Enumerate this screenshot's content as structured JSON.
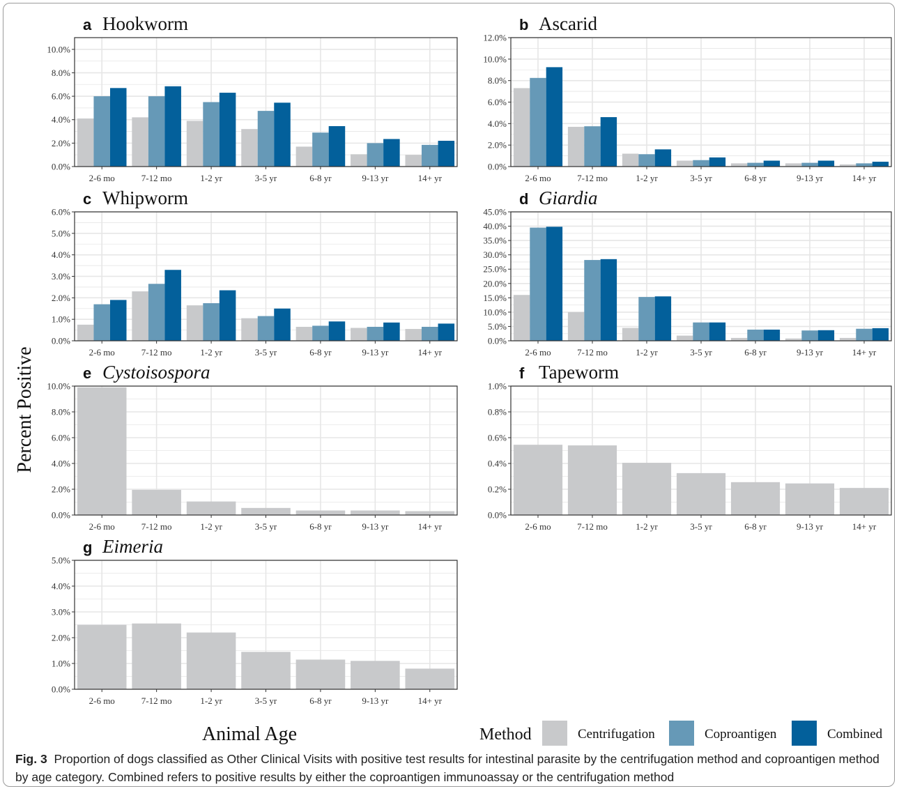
{
  "colors": {
    "centrifugation": "#c8c9cb",
    "coproantigen": "#6699b7",
    "combined": "#03609b",
    "grid": "#e6e6e6",
    "panel_border": "#333333"
  },
  "legend": {
    "title": "Method",
    "entries": [
      "Centrifugation",
      "Coproantigen",
      "Combined"
    ]
  },
  "axes": {
    "x_title": "Animal Age",
    "y_title": "Percent Positive"
  },
  "caption": {
    "label": "Fig. 3",
    "text": "Proportion of dogs classified as Other Clinical Visits with positive test results for intestinal parasite by the centrifugation method and coproantigen method by age category. Combined refers to positive results by either the coproantigen immunoassay or the centrifugation method"
  },
  "chart_data": [
    {
      "type": "bar",
      "panel": "a",
      "title": "Hookworm",
      "italic": false,
      "categories": [
        "2-6 mo",
        "7-12 mo",
        "1-2 yr",
        "3-5 yr",
        "6-8 yr",
        "9-13 yr",
        "14+ yr"
      ],
      "series": [
        {
          "name": "Centrifugation",
          "values": [
            4.1,
            4.2,
            3.9,
            3.2,
            1.7,
            1.05,
            1.0
          ]
        },
        {
          "name": "Coproantigen",
          "values": [
            6.0,
            6.0,
            5.5,
            4.75,
            2.9,
            2.0,
            1.85
          ]
        },
        {
          "name": "Combined",
          "values": [
            6.7,
            6.85,
            6.3,
            5.45,
            3.45,
            2.35,
            2.2
          ]
        }
      ],
      "ylim": [
        0,
        11
      ],
      "yticks": [
        0,
        2,
        4,
        6,
        8,
        10
      ],
      "tick_labels": [
        "0.0%",
        "2.0%",
        "4.0%",
        "6.0%",
        "8.0%",
        "10.0%"
      ]
    },
    {
      "type": "bar",
      "panel": "b",
      "title": "Ascarid",
      "italic": false,
      "categories": [
        "2-6 mo",
        "7-12 mo",
        "1-2 yr",
        "3-5 yr",
        "6-8 yr",
        "9-13 yr",
        "14+ yr"
      ],
      "series": [
        {
          "name": "Centrifugation",
          "values": [
            7.3,
            3.7,
            1.2,
            0.55,
            0.3,
            0.3,
            0.2
          ]
        },
        {
          "name": "Coproantigen",
          "values": [
            8.25,
            3.75,
            1.15,
            0.6,
            0.35,
            0.35,
            0.3
          ]
        },
        {
          "name": "Combined",
          "values": [
            9.25,
            4.6,
            1.6,
            0.85,
            0.55,
            0.55,
            0.45
          ]
        }
      ],
      "ylim": [
        0,
        12
      ],
      "yticks": [
        0,
        2,
        4,
        6,
        8,
        10,
        12
      ],
      "tick_labels": [
        "0.0%",
        "2.0%",
        "4.0%",
        "6.0%",
        "8.0%",
        "10.0%",
        "12.0%"
      ]
    },
    {
      "type": "bar",
      "panel": "c",
      "title": "Whipworm",
      "italic": false,
      "categories": [
        "2-6 mo",
        "7-12 mo",
        "1-2 yr",
        "3-5 yr",
        "6-8 yr",
        "9-13 yr",
        "14+ yr"
      ],
      "series": [
        {
          "name": "Centrifugation",
          "values": [
            0.75,
            2.3,
            1.65,
            1.05,
            0.65,
            0.6,
            0.55
          ]
        },
        {
          "name": "Coproantigen",
          "values": [
            1.7,
            2.65,
            1.75,
            1.15,
            0.7,
            0.65,
            0.65
          ]
        },
        {
          "name": "Combined",
          "values": [
            1.9,
            3.3,
            2.35,
            1.5,
            0.9,
            0.85,
            0.8
          ]
        }
      ],
      "ylim": [
        0,
        6
      ],
      "yticks": [
        0,
        1,
        2,
        3,
        4,
        5,
        6
      ],
      "tick_labels": [
        "0.0%",
        "1.0%",
        "2.0%",
        "3.0%",
        "4.0%",
        "5.0%",
        "6.0%"
      ]
    },
    {
      "type": "bar",
      "panel": "d",
      "title": "Giardia",
      "italic": true,
      "categories": [
        "2-6 mo",
        "7-12 mo",
        "1-2 yr",
        "3-5 yr",
        "6-8 yr",
        "9-13 yr",
        "14+ yr"
      ],
      "series": [
        {
          "name": "Centrifugation",
          "values": [
            16.0,
            10.0,
            4.5,
            1.8,
            1.0,
            0.8,
            1.0
          ]
        },
        {
          "name": "Coproantigen",
          "values": [
            39.5,
            28.2,
            15.3,
            6.4,
            3.9,
            3.6,
            4.2
          ]
        },
        {
          "name": "Combined",
          "values": [
            39.8,
            28.5,
            15.5,
            6.4,
            3.9,
            3.7,
            4.4
          ]
        }
      ],
      "ylim": [
        0,
        45
      ],
      "yticks": [
        0,
        5,
        10,
        15,
        20,
        25,
        30,
        35,
        40,
        45
      ],
      "tick_labels": [
        "0.0%",
        "5.0%",
        "10.0%",
        "15.0%",
        "20.0%",
        "25.0%",
        "30.0%",
        "35.0%",
        "40.0%",
        "45.0%"
      ]
    },
    {
      "type": "bar",
      "panel": "e",
      "title": "Cystoisospora",
      "italic": true,
      "categories": [
        "2-6 mo",
        "7-12 mo",
        "1-2 yr",
        "3-5 yr",
        "6-8 yr",
        "9-13 yr",
        "14+ yr"
      ],
      "series": [
        {
          "name": "Centrifugation",
          "values": [
            9.9,
            1.95,
            1.05,
            0.55,
            0.35,
            0.35,
            0.3
          ]
        }
      ],
      "ylim": [
        0,
        10
      ],
      "yticks": [
        0,
        2,
        4,
        6,
        8,
        10
      ],
      "tick_labels": [
        "0.0%",
        "2.0%",
        "4.0%",
        "6.0%",
        "8.0%",
        "10.0%"
      ]
    },
    {
      "type": "bar",
      "panel": "f",
      "title": "Tapeworm",
      "italic": false,
      "categories": [
        "2-6 mo",
        "7-12 mo",
        "1-2 yr",
        "3-5 yr",
        "6-8 yr",
        "9-13 yr",
        "14+ yr"
      ],
      "series": [
        {
          "name": "Centrifugation",
          "values": [
            0.545,
            0.54,
            0.405,
            0.325,
            0.255,
            0.245,
            0.21
          ]
        }
      ],
      "ylim": [
        0,
        1
      ],
      "yticks": [
        0,
        0.2,
        0.4,
        0.6,
        0.8,
        1.0
      ],
      "tick_labels": [
        "0.0%",
        "0.2%",
        "0.4%",
        "0.6%",
        "0.8%",
        "1.0%"
      ]
    },
    {
      "type": "bar",
      "panel": "g",
      "title": "Eimeria",
      "italic": true,
      "categories": [
        "2-6 mo",
        "7-12 mo",
        "1-2 yr",
        "3-5 yr",
        "6-8 yr",
        "9-13 yr",
        "14+ yr"
      ],
      "series": [
        {
          "name": "Centrifugation",
          "values": [
            2.5,
            2.55,
            2.2,
            1.45,
            1.15,
            1.1,
            0.8
          ]
        }
      ],
      "ylim": [
        0,
        5
      ],
      "yticks": [
        0,
        1,
        2,
        3,
        4,
        5
      ],
      "tick_labels": [
        "0.0%",
        "1.0%",
        "2.0%",
        "3.0%",
        "4.0%",
        "5.0%"
      ]
    }
  ]
}
